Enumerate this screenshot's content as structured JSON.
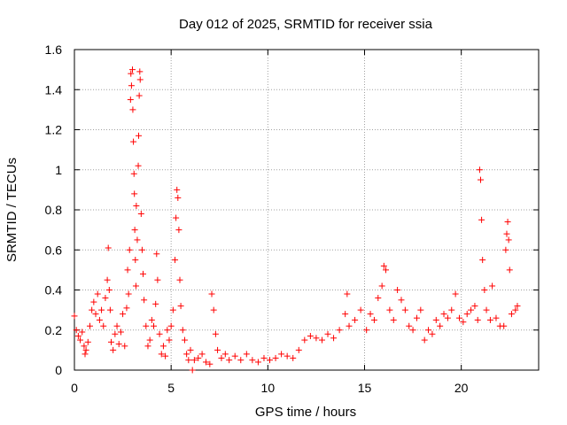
{
  "chart_data": {
    "type": "scatter",
    "title": "Day 012 of 2025, SRMTID for receiver ssia",
    "xlabel": "GPS time / hours",
    "ylabel": "SRMTID / TECUs",
    "xlim": [
      0,
      24
    ],
    "ylim": [
      0,
      1.6
    ],
    "xticks": [
      0,
      5,
      10,
      15,
      20
    ],
    "xtick_labels": [
      "0",
      "5",
      "10",
      "15",
      "20"
    ],
    "yticks": [
      0,
      0.2,
      0.4,
      0.6,
      0.8,
      1,
      1.2,
      1.4,
      1.6
    ],
    "ytick_labels": [
      "0",
      "0.2",
      "0.4",
      "0.6",
      "0.8",
      "1",
      "1.2",
      "1.4",
      "1.6"
    ],
    "grid": true,
    "marker": "+",
    "series": [
      {
        "name": "SRMTID",
        "color": "#ff0000",
        "points": [
          [
            0.0,
            0.27
          ],
          [
            0.1,
            0.2
          ],
          [
            0.2,
            0.17
          ],
          [
            0.3,
            0.15
          ],
          [
            0.4,
            0.19
          ],
          [
            0.5,
            0.12
          ],
          [
            0.55,
            0.08
          ],
          [
            0.6,
            0.1
          ],
          [
            0.7,
            0.14
          ],
          [
            0.8,
            0.22
          ],
          [
            0.9,
            0.3
          ],
          [
            1.0,
            0.34
          ],
          [
            1.1,
            0.28
          ],
          [
            1.2,
            0.38
          ],
          [
            1.3,
            0.25
          ],
          [
            1.4,
            0.3
          ],
          [
            1.5,
            0.22
          ],
          [
            1.6,
            0.36
          ],
          [
            1.7,
            0.45
          ],
          [
            1.75,
            0.61
          ],
          [
            1.8,
            0.4
          ],
          [
            1.85,
            0.3
          ],
          [
            1.9,
            0.14
          ],
          [
            2.0,
            0.1
          ],
          [
            2.1,
            0.18
          ],
          [
            2.2,
            0.22
          ],
          [
            2.3,
            0.13
          ],
          [
            2.4,
            0.19
          ],
          [
            2.5,
            0.28
          ],
          [
            2.6,
            0.12
          ],
          [
            2.7,
            0.31
          ],
          [
            2.75,
            0.5
          ],
          [
            2.8,
            0.38
          ],
          [
            2.85,
            0.6
          ],
          [
            2.9,
            1.35
          ],
          [
            2.92,
            1.48
          ],
          [
            2.95,
            1.42
          ],
          [
            3.0,
            1.5
          ],
          [
            3.02,
            1.3
          ],
          [
            3.05,
            1.14
          ],
          [
            3.08,
            0.98
          ],
          [
            3.1,
            0.88
          ],
          [
            3.12,
            0.7
          ],
          [
            3.15,
            0.55
          ],
          [
            3.18,
            0.42
          ],
          [
            3.2,
            0.82
          ],
          [
            3.25,
            0.65
          ],
          [
            3.3,
            1.02
          ],
          [
            3.32,
            1.17
          ],
          [
            3.35,
            1.37
          ],
          [
            3.38,
            1.49
          ],
          [
            3.4,
            1.45
          ],
          [
            3.45,
            0.78
          ],
          [
            3.5,
            0.6
          ],
          [
            3.55,
            0.48
          ],
          [
            3.6,
            0.35
          ],
          [
            3.7,
            0.22
          ],
          [
            3.8,
            0.12
          ],
          [
            3.9,
            0.15
          ],
          [
            4.0,
            0.25
          ],
          [
            4.1,
            0.22
          ],
          [
            4.2,
            0.33
          ],
          [
            4.25,
            0.58
          ],
          [
            4.3,
            0.45
          ],
          [
            4.4,
            0.18
          ],
          [
            4.5,
            0.08
          ],
          [
            4.6,
            0.12
          ],
          [
            4.7,
            0.07
          ],
          [
            4.8,
            0.2
          ],
          [
            4.9,
            0.15
          ],
          [
            5.0,
            0.22
          ],
          [
            5.1,
            0.3
          ],
          [
            5.2,
            0.55
          ],
          [
            5.25,
            0.76
          ],
          [
            5.3,
            0.9
          ],
          [
            5.35,
            0.86
          ],
          [
            5.4,
            0.7
          ],
          [
            5.45,
            0.45
          ],
          [
            5.5,
            0.32
          ],
          [
            5.6,
            0.2
          ],
          [
            5.7,
            0.15
          ],
          [
            5.8,
            0.08
          ],
          [
            5.9,
            0.05
          ],
          [
            6.0,
            0.1
          ],
          [
            6.1,
            0.0
          ],
          [
            6.2,
            0.05
          ],
          [
            6.4,
            0.06
          ],
          [
            6.6,
            0.08
          ],
          [
            6.8,
            0.04
          ],
          [
            7.0,
            0.03
          ],
          [
            7.1,
            0.38
          ],
          [
            7.2,
            0.3
          ],
          [
            7.3,
            0.18
          ],
          [
            7.4,
            0.1
          ],
          [
            7.6,
            0.06
          ],
          [
            7.8,
            0.08
          ],
          [
            8.0,
            0.05
          ],
          [
            8.3,
            0.07
          ],
          [
            8.6,
            0.05
          ],
          [
            8.9,
            0.08
          ],
          [
            9.2,
            0.05
          ],
          [
            9.5,
            0.04
          ],
          [
            9.8,
            0.06
          ],
          [
            10.1,
            0.05
          ],
          [
            10.4,
            0.06
          ],
          [
            10.7,
            0.08
          ],
          [
            11.0,
            0.07
          ],
          [
            11.3,
            0.06
          ],
          [
            11.6,
            0.1
          ],
          [
            11.9,
            0.15
          ],
          [
            12.2,
            0.17
          ],
          [
            12.5,
            0.16
          ],
          [
            12.8,
            0.15
          ],
          [
            13.1,
            0.18
          ],
          [
            13.4,
            0.16
          ],
          [
            13.7,
            0.2
          ],
          [
            14.0,
            0.28
          ],
          [
            14.1,
            0.38
          ],
          [
            14.2,
            0.22
          ],
          [
            14.5,
            0.25
          ],
          [
            14.8,
            0.3
          ],
          [
            15.1,
            0.2
          ],
          [
            15.3,
            0.28
          ],
          [
            15.5,
            0.25
          ],
          [
            15.7,
            0.36
          ],
          [
            15.9,
            0.42
          ],
          [
            16.0,
            0.52
          ],
          [
            16.1,
            0.5
          ],
          [
            16.3,
            0.3
          ],
          [
            16.5,
            0.25
          ],
          [
            16.7,
            0.4
          ],
          [
            16.9,
            0.35
          ],
          [
            17.1,
            0.3
          ],
          [
            17.3,
            0.22
          ],
          [
            17.5,
            0.2
          ],
          [
            17.7,
            0.26
          ],
          [
            17.9,
            0.3
          ],
          [
            18.1,
            0.15
          ],
          [
            18.3,
            0.2
          ],
          [
            18.5,
            0.18
          ],
          [
            18.7,
            0.25
          ],
          [
            18.9,
            0.22
          ],
          [
            19.1,
            0.28
          ],
          [
            19.3,
            0.26
          ],
          [
            19.5,
            0.3
          ],
          [
            19.7,
            0.38
          ],
          [
            19.9,
            0.26
          ],
          [
            20.1,
            0.24
          ],
          [
            20.3,
            0.28
          ],
          [
            20.5,
            0.3
          ],
          [
            20.7,
            0.32
          ],
          [
            20.85,
            0.25
          ],
          [
            20.95,
            1.0
          ],
          [
            21.0,
            0.95
          ],
          [
            21.05,
            0.75
          ],
          [
            21.1,
            0.55
          ],
          [
            21.2,
            0.4
          ],
          [
            21.3,
            0.3
          ],
          [
            21.5,
            0.25
          ],
          [
            21.6,
            0.42
          ],
          [
            21.8,
            0.26
          ],
          [
            22.0,
            0.22
          ],
          [
            22.2,
            0.22
          ],
          [
            22.3,
            0.6
          ],
          [
            22.35,
            0.68
          ],
          [
            22.4,
            0.74
          ],
          [
            22.45,
            0.65
          ],
          [
            22.5,
            0.5
          ],
          [
            22.6,
            0.28
          ],
          [
            22.8,
            0.3
          ],
          [
            22.9,
            0.32
          ]
        ]
      }
    ]
  }
}
